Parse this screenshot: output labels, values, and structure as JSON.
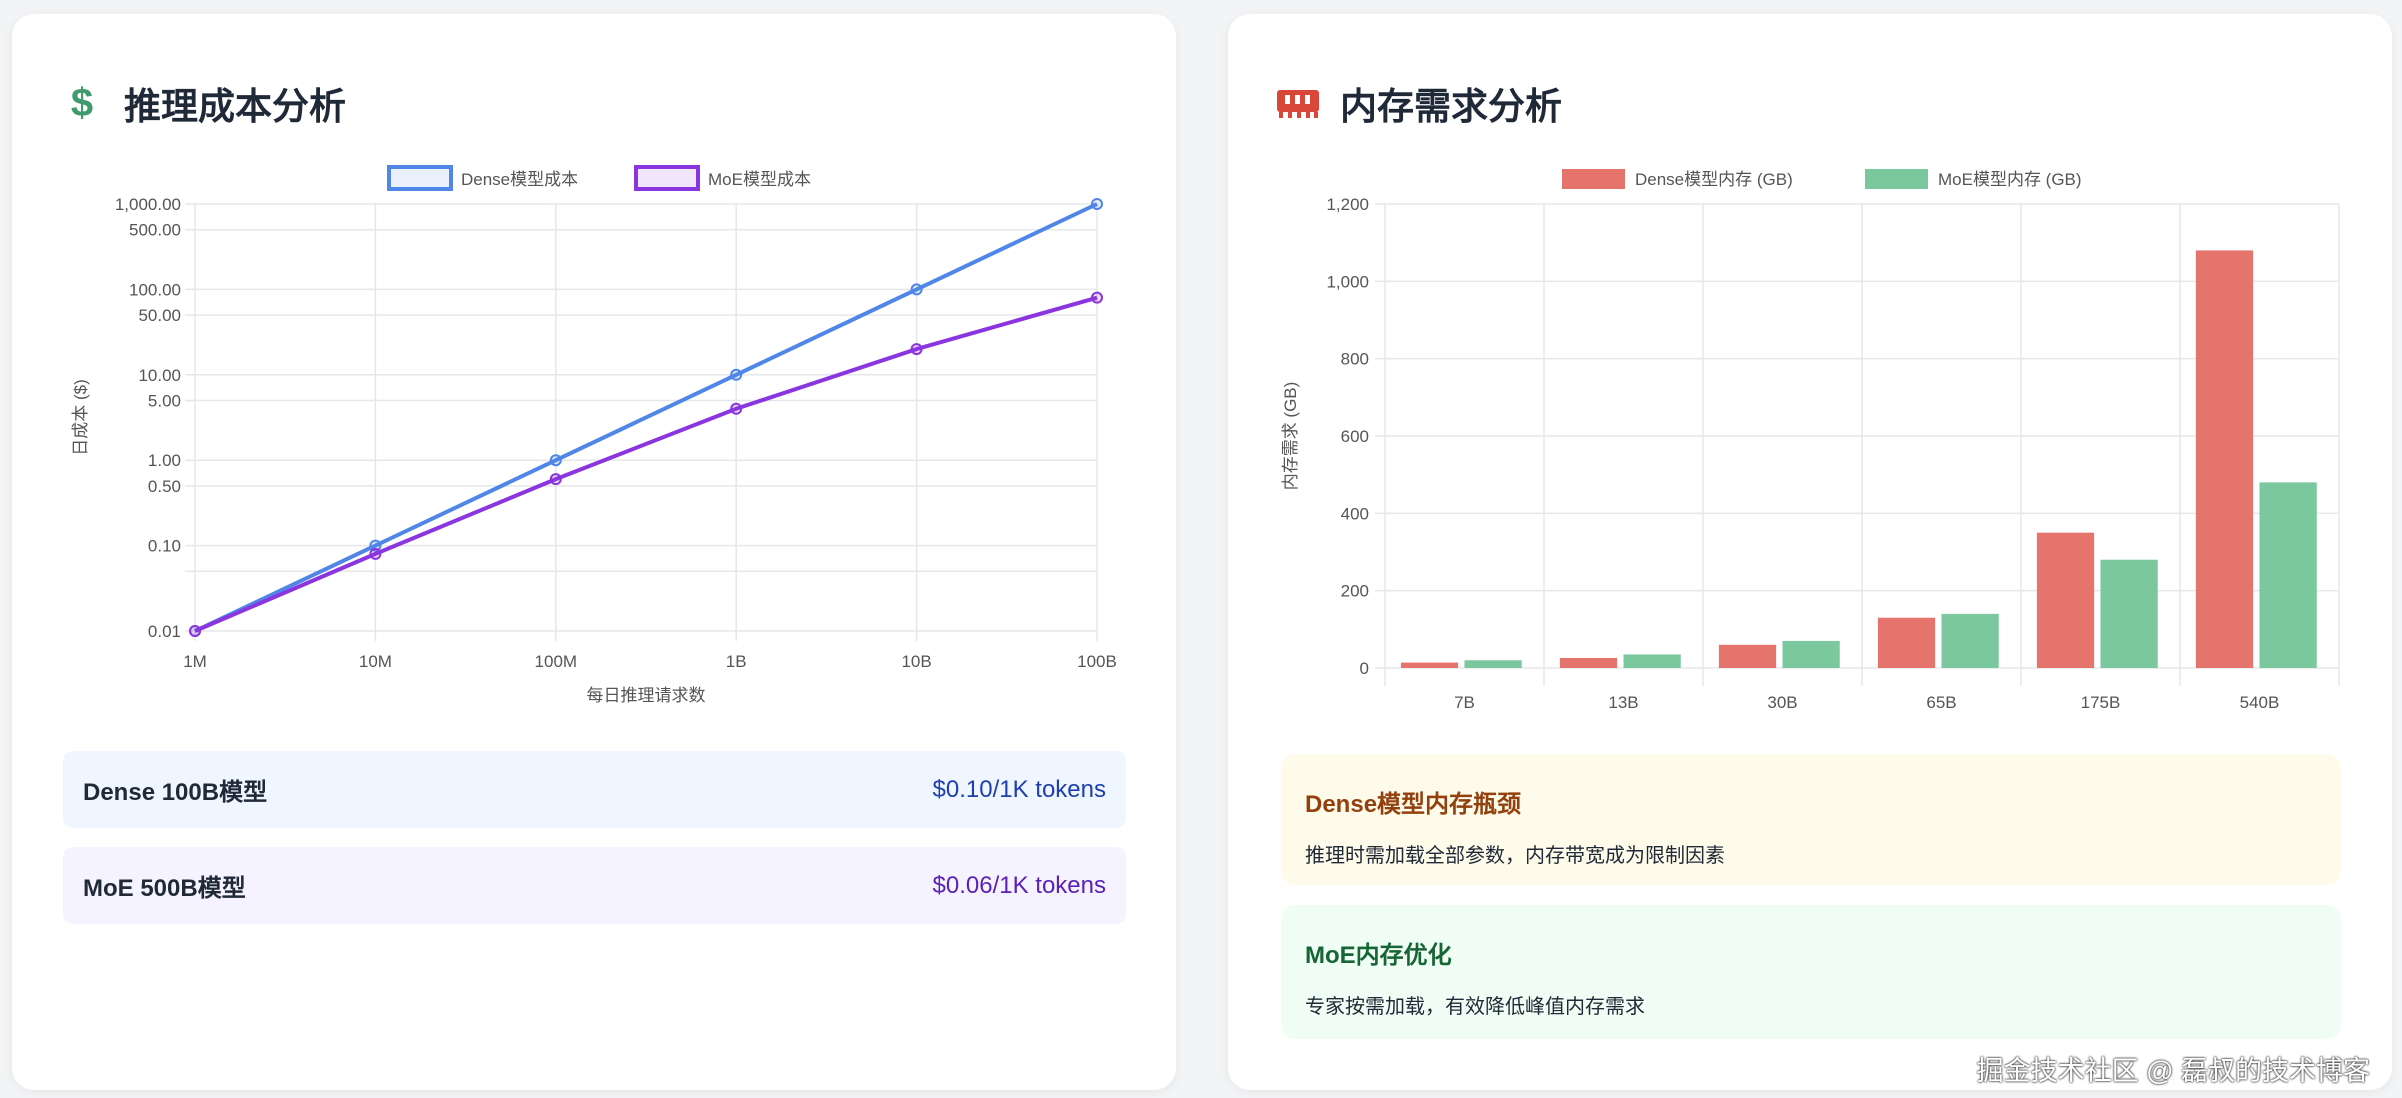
{
  "cost_panel": {
    "icon": "dollar-icon",
    "title": "推理成本分析",
    "rows": [
      {
        "name": "Dense 100B模型",
        "price": "$0.10/1K tokens",
        "color": "#1e40af",
        "bg": "#eff6ff"
      },
      {
        "name": "MoE 500B模型",
        "price": "$0.06/1K tokens",
        "color": "#5b21b6",
        "bg": "#f5f3ff"
      }
    ]
  },
  "memory_panel": {
    "icon": "memory-chip-icon",
    "title": "内存需求分析",
    "notes": [
      {
        "title": "Dense模型内存瓶颈",
        "text": "推理时需加载全部参数，内存带宽成为限制因素",
        "color": "#92400e",
        "bg": "#fffbeb"
      },
      {
        "title": "MoE内存优化",
        "text": "专家按需加载，有效降低峰值内存需求",
        "color": "#166534",
        "bg": "#f0fdf4"
      }
    ]
  },
  "watermark": "掘金技术社区 @ 磊叔的技术博客",
  "chart_data": [
    {
      "type": "line",
      "xlabel": "每日推理请求数",
      "ylabel": "日成本 ($)",
      "y_scale": "log",
      "ylim": [
        0.01,
        1000
      ],
      "legend": "top",
      "grid": true,
      "categories": [
        "1M",
        "10M",
        "100M",
        "1B",
        "10B",
        "100B"
      ],
      "y_ticks": [
        "1,000.00",
        "500.00",
        "100.00",
        "50.00",
        "10.00",
        "5.00",
        "1.00",
        "0.50",
        "0.10",
        "0.01"
      ],
      "series": [
        {
          "name": "Dense模型成本",
          "color": "#4f86e8",
          "values": [
            0.01,
            0.1,
            1,
            10,
            100,
            1000
          ]
        },
        {
          "name": "MoE模型成本",
          "color": "#8b35e0",
          "values": [
            0.01,
            0.08,
            0.6,
            4,
            20,
            80
          ]
        }
      ]
    },
    {
      "type": "bar",
      "ylabel": "内存需求 (GB)",
      "ylim": [
        0,
        1200
      ],
      "legend": "top",
      "grid": true,
      "categories": [
        "7B",
        "13B",
        "30B",
        "65B",
        "175B",
        "540B"
      ],
      "y_ticks": [
        "0",
        "200",
        "400",
        "600",
        "800",
        "1,000",
        "1,200"
      ],
      "series": [
        {
          "name": "Dense模型内存 (GB)",
          "color": "#e5756c",
          "values": [
            14,
            26,
            60,
            130,
            350,
            1080
          ]
        },
        {
          "name": "MoE模型内存 (GB)",
          "color": "#7bc79e",
          "values": [
            20,
            35,
            70,
            140,
            280,
            480
          ]
        }
      ]
    }
  ]
}
